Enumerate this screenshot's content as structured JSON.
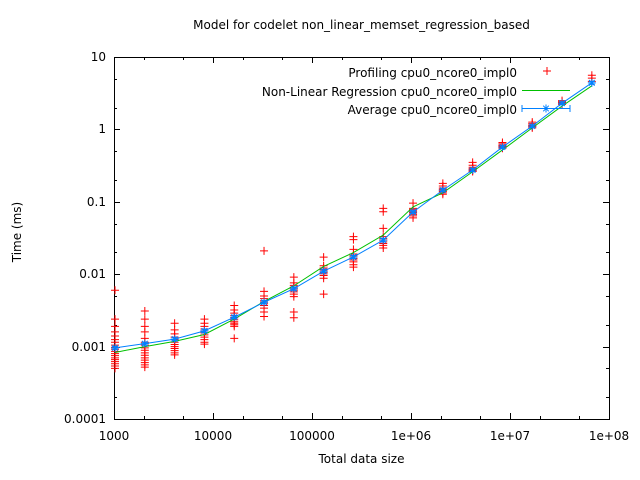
{
  "title": "Model for codelet non_linear_memset_regression_based",
  "axes": {
    "x": {
      "label": "Total data size",
      "scale": "log",
      "min": 1000,
      "max": 100000000,
      "major_ticks": [
        {
          "value": 1000,
          "label": "1000"
        },
        {
          "value": 10000,
          "label": "10000"
        },
        {
          "value": 100000,
          "label": "100000"
        },
        {
          "value": 1000000,
          "label": "1e+06"
        },
        {
          "value": 10000000,
          "label": "1e+07"
        },
        {
          "value": 100000000,
          "label": "1e+08"
        }
      ],
      "minor_multipliers": [
        2,
        5
      ]
    },
    "y": {
      "label": "Time (ms)",
      "scale": "log",
      "min": 0.0001,
      "max": 10,
      "major_ticks": [
        {
          "value": 10,
          "label": "10"
        },
        {
          "value": 1,
          "label": "1"
        },
        {
          "value": 0.1,
          "label": "0.1"
        },
        {
          "value": 0.01,
          "label": "0.01"
        },
        {
          "value": 0.001,
          "label": "0.001"
        },
        {
          "value": 0.0001,
          "label": "0.0001"
        }
      ],
      "minor_multipliers": [
        2,
        5
      ]
    }
  },
  "legend": {
    "items": [
      {
        "label": "Profiling cpu0_ncore0_impl0",
        "color": "#ff0000",
        "sample": "point-plus"
      },
      {
        "label": "Non-Linear Regression cpu0_ncore0_impl0",
        "color": "#00c000",
        "sample": "line"
      },
      {
        "label": "Average cpu0_ncore0_impl0",
        "color": "#0080ff",
        "sample": "errorbar-line-star"
      }
    ]
  },
  "chart_data": {
    "type": "scatter",
    "title": "Model for codelet non_linear_memset_regression_based",
    "xlabel": "Total data size",
    "ylabel": "Time (ms)",
    "xlim": [
      1000,
      100000000
    ],
    "ylim": [
      0.0001,
      10
    ],
    "x_values": [
      1024,
      2048,
      4096,
      8192,
      16384,
      32768,
      65536,
      131072,
      262144,
      524288,
      1048576,
      2097152,
      4194304,
      8388608,
      16777216,
      33554432,
      67108864
    ],
    "series": [
      {
        "name": "Profiling cpu0_ncore0_impl0",
        "type": "scatter",
        "marker": "plus",
        "color": "#ff0000",
        "clusters": [
          {
            "x": 1024,
            "values": [
              0.006,
              0.0024,
              0.0019,
              0.0016,
              0.0014,
              0.00125,
              0.00115,
              0.00105,
              0.00098,
              0.00092,
              0.00086,
              0.0008,
              0.00075,
              0.0007,
              0.00066,
              0.00062,
              0.00058,
              0.00054,
              0.0005
            ]
          },
          {
            "x": 2048,
            "values": [
              0.0031,
              0.0024,
              0.0019,
              0.0016,
              0.0013,
              0.00115,
              0.00105,
              0.00096,
              0.00089,
              0.00082,
              0.00076,
              0.0007,
              0.00065,
              0.0006,
              0.00056,
              0.00052
            ]
          },
          {
            "x": 4096,
            "values": [
              0.0021,
              0.0017,
              0.0015,
              0.00135,
              0.00125,
              0.00115,
              0.00107,
              0.001,
              0.00094,
              0.00088,
              0.00082,
              0.00077
            ]
          },
          {
            "x": 8192,
            "values": [
              0.0024,
              0.0021,
              0.0019,
              0.00175,
              0.00165,
              0.00155,
              0.00145,
              0.00135,
              0.00125,
              0.00115,
              0.00108
            ]
          },
          {
            "x": 16384,
            "values": [
              0.0037,
              0.0032,
              0.0029,
              0.0027,
              0.0025,
              0.00235,
              0.0022,
              0.0021,
              0.002,
              0.0019,
              0.0013
            ]
          },
          {
            "x": 32768,
            "values": [
              0.021,
              0.0058,
              0.005,
              0.0046,
              0.0043,
              0.0041,
              0.0039,
              0.0037,
              0.0034,
              0.003,
              0.0026
            ]
          },
          {
            "x": 65536,
            "values": [
              0.0091,
              0.0076,
              0.007,
              0.0066,
              0.0063,
              0.006,
              0.0057,
              0.0053,
              0.0049,
              0.003,
              0.0025
            ]
          },
          {
            "x": 131072,
            "values": [
              0.0172,
              0.0131,
              0.0122,
              0.0116,
              0.0111,
              0.0106,
              0.0101,
              0.0096,
              0.0088,
              0.0053
            ]
          },
          {
            "x": 262144,
            "values": [
              0.033,
              0.03,
              0.022,
              0.019,
              0.018,
              0.0172,
              0.0165,
              0.0157,
              0.0148,
              0.0135,
              0.0125
            ]
          },
          {
            "x": 524288,
            "values": [
              0.081,
              0.073,
              0.043,
              0.033,
              0.031,
              0.0295,
              0.028,
              0.0265,
              0.025,
              0.023
            ]
          },
          {
            "x": 1048576,
            "values": [
              0.096,
              0.081,
              0.078,
              0.075,
              0.0725,
              0.07,
              0.067,
              0.064,
              0.06
            ]
          },
          {
            "x": 2097152,
            "values": [
              0.18,
              0.165,
              0.155,
              0.149,
              0.144,
              0.139,
              0.133,
              0.127
            ]
          },
          {
            "x": 4194304,
            "values": [
              0.35,
              0.32,
              0.3,
              0.29,
              0.28,
              0.275,
              0.268,
              0.262
            ]
          },
          {
            "x": 8388608,
            "values": [
              0.66,
              0.63,
              0.605,
              0.59,
              0.575,
              0.56,
              0.55
            ]
          },
          {
            "x": 16777216,
            "values": [
              1.26,
              1.2,
              1.15,
              1.12,
              1.09,
              1.05
            ]
          },
          {
            "x": 33554432,
            "values": [
              2.5,
              2.42,
              2.35,
              2.28,
              2.22
            ]
          },
          {
            "x": 67108864,
            "values": [
              5.6,
              5.1,
              4.6
            ]
          }
        ]
      },
      {
        "name": "Non-Linear Regression cpu0_ncore0_impl0",
        "type": "line",
        "color": "#00c000",
        "values": [
          0.00083,
          0.001,
          0.00118,
          0.00147,
          0.0024,
          0.0042,
          0.0069,
          0.0128,
          0.0199,
          0.0347,
          0.085,
          0.133,
          0.26,
          0.52,
          1.05,
          2.1,
          4.0
        ]
      },
      {
        "name": "Average cpu0_ncore0_impl0",
        "type": "line-with-points",
        "marker": "star",
        "color": "#0080ff",
        "values": [
          0.00096,
          0.0011,
          0.00127,
          0.00165,
          0.00255,
          0.0041,
          0.0063,
          0.011,
          0.0173,
          0.0296,
          0.0723,
          0.145,
          0.275,
          0.57,
          1.11,
          2.3,
          4.4
        ],
        "yerr": [
          4e-05,
          5e-05,
          6e-05,
          8e-05,
          0.00012,
          0.0002,
          0.0003,
          0.0005,
          0.0008,
          0.0015,
          0.003,
          0.007,
          0.013,
          0.025,
          0.05,
          0.1,
          0.2
        ]
      }
    ]
  }
}
